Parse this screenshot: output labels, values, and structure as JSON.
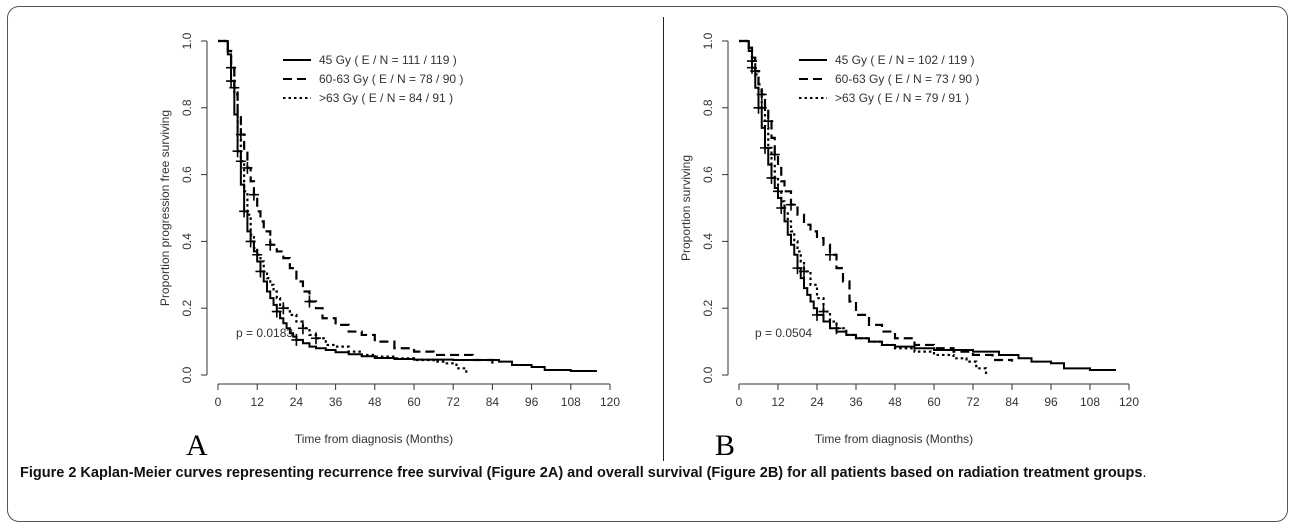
{
  "figure": {
    "caption_bold": "Figure 2 Kaplan-Meier curves representing recurrence free survival (Figure 2A) and overall survival (Figure 2B) for all patients based on radiation treatment groups",
    "caption_tail": "."
  },
  "chart_data": [
    {
      "type": "line",
      "panel": "A",
      "xlabel": "Time from diagnosis (Months)",
      "ylabel": "Proportion progression free surviving",
      "xlim": [
        0,
        120
      ],
      "ylim": [
        0,
        1
      ],
      "xticks": [
        0,
        12,
        24,
        36,
        48,
        60,
        72,
        84,
        96,
        108,
        120
      ],
      "yticks": [
        "0.0",
        "0.2",
        "0.4",
        "0.6",
        "0.8",
        "1.0"
      ],
      "annotation": "p = 0.0183",
      "legend_position": "top-right",
      "series": [
        {
          "name": "45 Gy ( E / N = 111 / 119 )",
          "style": "solid",
          "x": [
            0,
            2,
            3,
            4,
            5,
            6,
            7,
            8,
            9,
            10,
            11,
            12,
            13,
            14,
            15,
            16,
            17,
            18,
            19,
            20,
            21,
            22,
            23,
            24,
            26,
            28,
            30,
            33,
            36,
            40,
            44,
            48,
            54,
            60,
            66,
            72,
            80,
            86,
            90,
            96,
            100,
            108,
            116
          ],
          "y": [
            1.0,
            1.0,
            0.96,
            0.88,
            0.78,
            0.67,
            0.57,
            0.49,
            0.43,
            0.4,
            0.37,
            0.34,
            0.31,
            0.28,
            0.25,
            0.23,
            0.21,
            0.19,
            0.17,
            0.155,
            0.14,
            0.125,
            0.115,
            0.105,
            0.095,
            0.085,
            0.08,
            0.075,
            0.068,
            0.062,
            0.056,
            0.051,
            0.048,
            0.046,
            0.046,
            0.045,
            0.045,
            0.04,
            0.03,
            0.024,
            0.015,
            0.012,
            0.012
          ]
        },
        {
          "name": "60-63 Gy ( E / N = 78 / 90 )",
          "style": "dashed",
          "x": [
            0,
            2,
            3,
            4,
            5,
            6,
            7,
            8,
            9,
            10,
            11,
            12,
            13,
            14,
            16,
            18,
            20,
            22,
            24,
            26,
            28,
            30,
            32,
            36,
            40,
            44,
            48,
            54,
            60,
            66,
            72,
            78,
            84
          ],
          "y": [
            1.0,
            1.0,
            0.97,
            0.92,
            0.86,
            0.78,
            0.72,
            0.67,
            0.62,
            0.58,
            0.54,
            0.49,
            0.46,
            0.43,
            0.39,
            0.37,
            0.35,
            0.32,
            0.28,
            0.25,
            0.22,
            0.2,
            0.17,
            0.15,
            0.13,
            0.12,
            0.1,
            0.08,
            0.07,
            0.06,
            0.06,
            0.045,
            0.03
          ]
        },
        {
          "name": ">63 Gy ( E / N = 84 / 91 )",
          "style": "dotted",
          "x": [
            0,
            2,
            3,
            4,
            5,
            6,
            7,
            8,
            9,
            10,
            11,
            12,
            13,
            14,
            15,
            16,
            17,
            18,
            19,
            20,
            22,
            24,
            26,
            28,
            30,
            33,
            36,
            40,
            44,
            48,
            54,
            60,
            66,
            70,
            73,
            76
          ],
          "y": [
            1.0,
            1.0,
            0.97,
            0.92,
            0.84,
            0.74,
            0.64,
            0.55,
            0.48,
            0.42,
            0.38,
            0.36,
            0.34,
            0.31,
            0.29,
            0.27,
            0.25,
            0.23,
            0.21,
            0.2,
            0.18,
            0.16,
            0.14,
            0.12,
            0.11,
            0.09,
            0.085,
            0.07,
            0.06,
            0.055,
            0.05,
            0.045,
            0.04,
            0.035,
            0.02,
            0.0
          ]
        }
      ]
    },
    {
      "type": "line",
      "panel": "B",
      "xlabel": "Time from diagnosis (Months)",
      "ylabel": "Proportion surviving",
      "xlim": [
        0,
        120
      ],
      "ylim": [
        0,
        1
      ],
      "xticks": [
        0,
        12,
        24,
        36,
        48,
        60,
        72,
        84,
        96,
        108,
        120
      ],
      "yticks": [
        "0.0",
        "0.2",
        "0.4",
        "0.6",
        "0.8",
        "1.0"
      ],
      "annotation": "p = 0.0504",
      "legend_position": "top-right",
      "series": [
        {
          "name": "45 Gy ( E / N = 102 / 119 )",
          "style": "solid",
          "x": [
            0,
            2,
            3,
            4,
            5,
            6,
            7,
            8,
            9,
            10,
            11,
            12,
            13,
            14,
            15,
            16,
            17,
            18,
            19,
            20,
            21,
            22,
            23,
            24,
            26,
            28,
            30,
            33,
            36,
            40,
            44,
            48,
            54,
            60,
            66,
            72,
            80,
            86,
            90,
            96,
            100,
            108,
            116
          ],
          "y": [
            1.0,
            1.0,
            0.97,
            0.92,
            0.86,
            0.8,
            0.74,
            0.68,
            0.63,
            0.59,
            0.56,
            0.53,
            0.5,
            0.46,
            0.42,
            0.39,
            0.36,
            0.32,
            0.29,
            0.26,
            0.24,
            0.22,
            0.2,
            0.18,
            0.16,
            0.14,
            0.13,
            0.12,
            0.11,
            0.1,
            0.09,
            0.085,
            0.08,
            0.075,
            0.075,
            0.07,
            0.06,
            0.05,
            0.04,
            0.035,
            0.02,
            0.015,
            0.015
          ]
        },
        {
          "name": "60-63 Gy ( E / N = 73 / 90 )",
          "style": "dashed",
          "x": [
            0,
            2,
            3,
            4,
            5,
            6,
            7,
            8,
            9,
            10,
            11,
            12,
            13,
            14,
            16,
            18,
            20,
            22,
            24,
            26,
            28,
            30,
            32,
            34,
            36,
            40,
            44,
            48,
            54,
            60,
            66,
            72,
            78,
            84
          ],
          "y": [
            1.0,
            1.0,
            0.98,
            0.95,
            0.91,
            0.87,
            0.84,
            0.8,
            0.76,
            0.71,
            0.66,
            0.62,
            0.58,
            0.55,
            0.51,
            0.48,
            0.45,
            0.43,
            0.41,
            0.39,
            0.36,
            0.32,
            0.28,
            0.22,
            0.18,
            0.15,
            0.13,
            0.11,
            0.09,
            0.08,
            0.07,
            0.06,
            0.045,
            0.04
          ]
        },
        {
          "name": ">63 Gy ( E / N = 79 / 91 )",
          "style": "dotted",
          "x": [
            0,
            2,
            3,
            4,
            5,
            6,
            7,
            8,
            9,
            10,
            11,
            12,
            13,
            14,
            15,
            16,
            17,
            18,
            19,
            20,
            22,
            24,
            26,
            28,
            30,
            33,
            36,
            40,
            44,
            48,
            54,
            60,
            66,
            70,
            73,
            76
          ],
          "y": [
            1.0,
            1.0,
            0.98,
            0.94,
            0.9,
            0.85,
            0.8,
            0.74,
            0.68,
            0.63,
            0.59,
            0.55,
            0.52,
            0.49,
            0.46,
            0.43,
            0.4,
            0.37,
            0.34,
            0.31,
            0.27,
            0.23,
            0.19,
            0.16,
            0.14,
            0.12,
            0.11,
            0.1,
            0.09,
            0.08,
            0.07,
            0.06,
            0.05,
            0.04,
            0.02,
            0.0
          ]
        }
      ]
    }
  ],
  "panels": {
    "A": {
      "letter": "A"
    },
    "B": {
      "letter": "B"
    }
  },
  "style": {
    "line_color": "#000000",
    "axis_color": "#333333"
  }
}
